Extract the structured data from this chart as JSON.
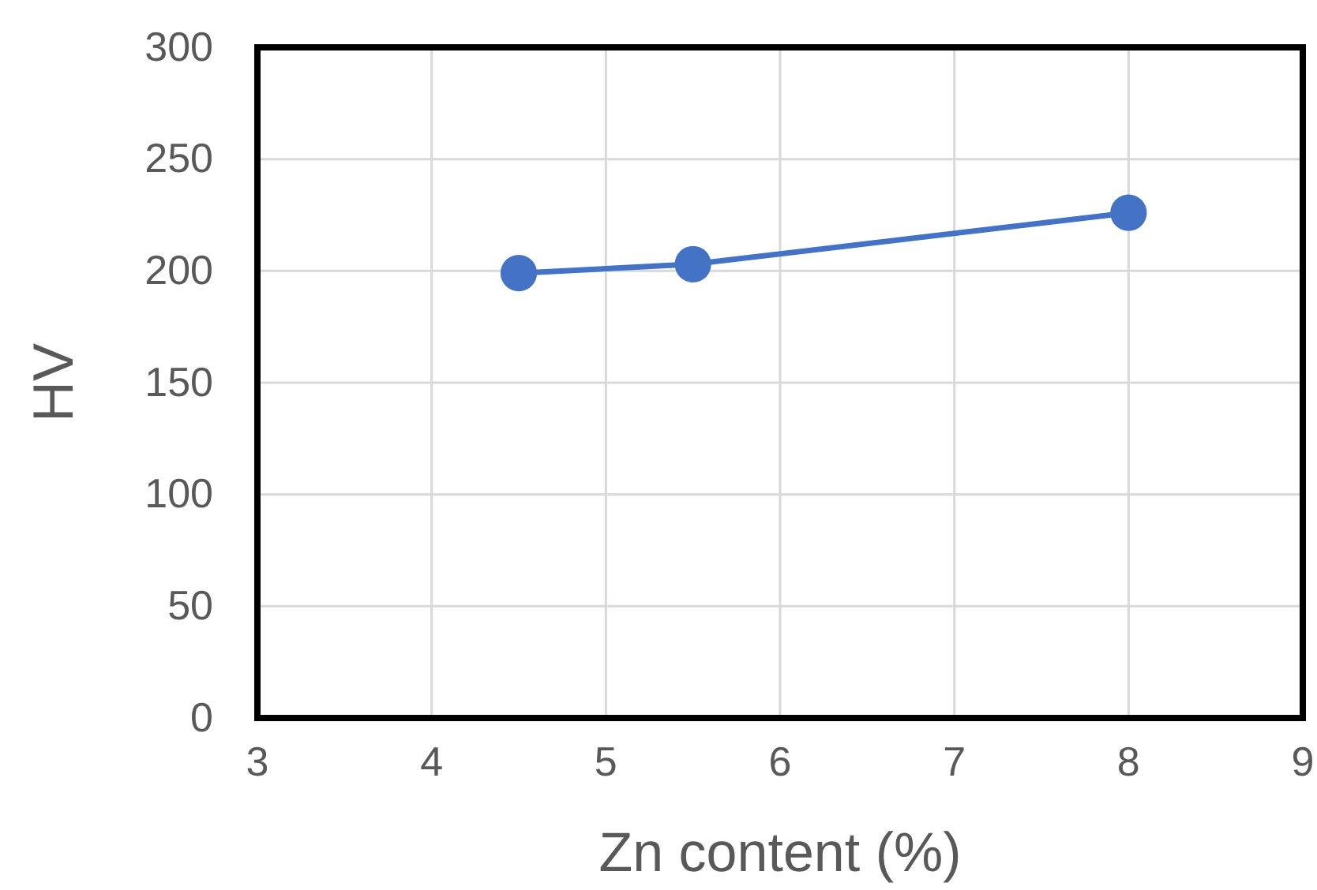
{
  "chart_data": {
    "type": "line",
    "xlabel": "Zn content (%)",
    "ylabel": "HV",
    "x": [
      4.5,
      5.5,
      8
    ],
    "series": [
      {
        "color": "#4472c4",
        "values": [
          199,
          203,
          226
        ]
      }
    ],
    "xlim": [
      3,
      9
    ],
    "xticks": [
      3,
      4,
      5,
      6,
      7,
      8,
      9
    ],
    "ylim": [
      0,
      300
    ],
    "yticks": [
      0,
      50,
      100,
      150,
      200,
      250,
      300
    ],
    "grid": true,
    "marker": "circle",
    "line_style": "solid"
  }
}
